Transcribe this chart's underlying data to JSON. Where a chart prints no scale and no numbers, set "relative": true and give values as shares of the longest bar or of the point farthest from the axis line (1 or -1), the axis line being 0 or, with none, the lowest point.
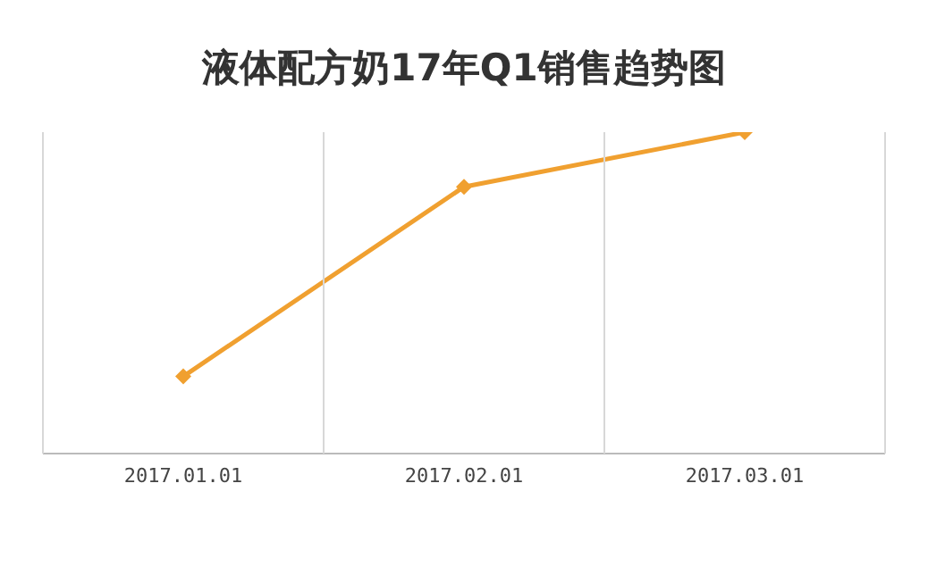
{
  "chart_data": {
    "type": "line",
    "title": "液体配方奶17年Q1销售趋势图",
    "categories": [
      "2017.01.01",
      "2017.02.01",
      "2017.03.01"
    ],
    "relative": true,
    "series": [
      {
        "color": "#f0a030",
        "values": [
          0.24,
          0.83,
          1
        ]
      }
    ],
    "marker": "diamond",
    "line_style": "solid",
    "legend": false
  }
}
